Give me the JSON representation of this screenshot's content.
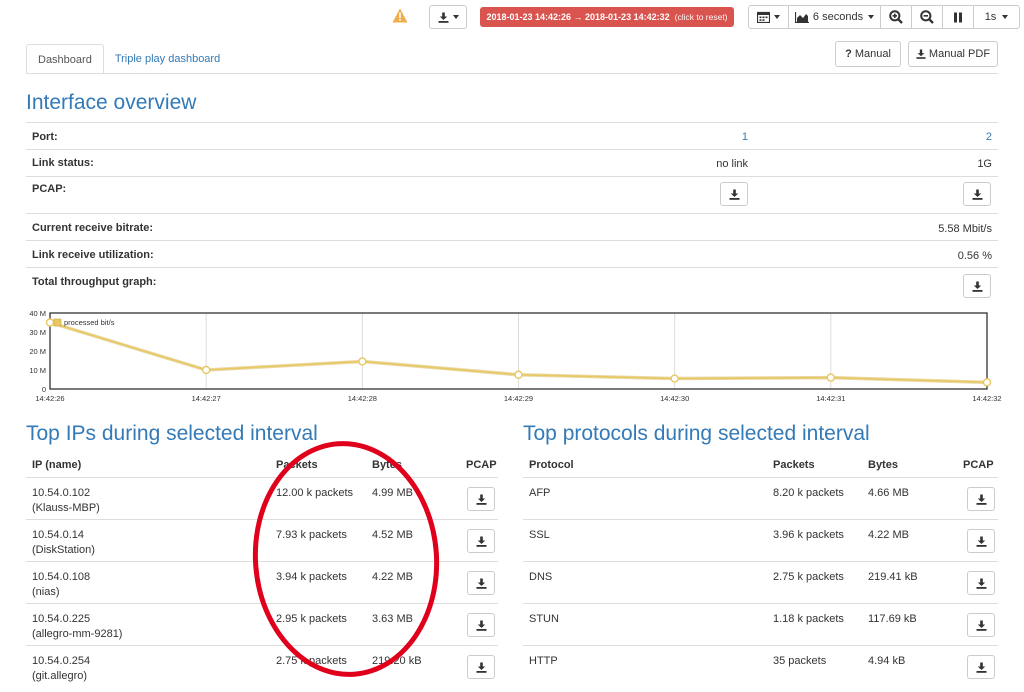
{
  "toolbar": {
    "warning_icon": "warning-icon",
    "time_range": "2018-01-23 14:42:26 → 2018-01-23 14:42:32",
    "time_range_reset": "(click to reset)",
    "interval": "6 seconds",
    "refresh": "1s",
    "accent_red": "#d9534f"
  },
  "tabs": [
    {
      "label": "Dashboard",
      "active": true
    },
    {
      "label": "Triple play dashboard",
      "active": false
    }
  ],
  "manual_label": "Manual",
  "manual_pdf_label": "Manual PDF",
  "overview": {
    "title": "Interface overview",
    "port_label": "Port:",
    "ports": [
      "1",
      "2"
    ],
    "link_status_label": "Link status:",
    "link_status": [
      "no link",
      "1G"
    ],
    "pcap_label": "PCAP:",
    "bitrate_label": "Current receive bitrate:",
    "bitrate_value": "5.58 Mbit/s",
    "utilization_label": "Link receive utilization:",
    "utilization_value": "0.56 %",
    "throughput_label": "Total throughput graph:"
  },
  "chart_data": {
    "type": "line",
    "title": "",
    "x": [
      "14:42:26",
      "14:42:27",
      "14:42:28",
      "14:42:29",
      "14:42:30",
      "14:42:31",
      "14:42:32"
    ],
    "series": [
      {
        "name": "processed bit/s",
        "values": [
          35,
          10,
          14.5,
          7.5,
          5.5,
          6,
          3.5
        ],
        "color": "#e8c860"
      }
    ],
    "yticks": [
      "0",
      "10 M",
      "20 M",
      "30 M",
      "40 M"
    ],
    "ylim": [
      0,
      40
    ],
    "grid": true,
    "legend": "top-left"
  },
  "top_ips": {
    "title": "Top IPs during selected interval",
    "headers": [
      "IP (name)",
      "Packets",
      "Bytes",
      "PCAP"
    ],
    "rows": [
      {
        "ip": "10.54.0.102",
        "name": "(Klauss-MBP)",
        "packets": "12.00 k packets",
        "bytes": "4.99 MB"
      },
      {
        "ip": "10.54.0.14",
        "name": "(DiskStation)",
        "packets": "7.93 k packets",
        "bytes": "4.52 MB"
      },
      {
        "ip": "10.54.0.108",
        "name": "(nias)",
        "packets": "3.94 k packets",
        "bytes": "4.22 MB"
      },
      {
        "ip": "10.54.0.225",
        "name": "(allegro-mm-9281)",
        "packets": "2.95 k packets",
        "bytes": "3.63 MB"
      },
      {
        "ip": "10.54.0.254",
        "name": "(git.allegro)",
        "packets": "2.75 k packets",
        "bytes": "219.20 kB"
      }
    ]
  },
  "top_protocols": {
    "title": "Top protocols during selected interval",
    "headers": [
      "Protocol",
      "Packets",
      "Bytes",
      "PCAP"
    ],
    "rows": [
      {
        "protocol": "AFP",
        "packets": "8.20 k packets",
        "bytes": "4.66 MB"
      },
      {
        "protocol": "SSL",
        "packets": "3.96 k packets",
        "bytes": "4.22 MB"
      },
      {
        "protocol": "DNS",
        "packets": "2.75 k packets",
        "bytes": "219.41 kB"
      },
      {
        "protocol": "STUN",
        "packets": "1.18 k packets",
        "bytes": "117.69 kB"
      },
      {
        "protocol": "HTTP",
        "packets": "35 packets",
        "bytes": "4.94 kB"
      }
    ]
  }
}
